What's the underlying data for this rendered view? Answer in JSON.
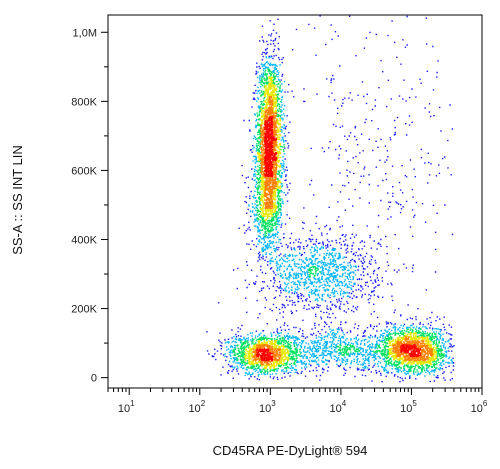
{
  "chart_data": {
    "type": "scatter",
    "subtype": "flow-cytometry-density-dot-plot",
    "title": "",
    "xlabel": "CD45RA PE-DyLight® 594",
    "ylabel": "SS-A :: SS INT LIN",
    "x_scale": "log",
    "xlim": [
      5,
      1000000
    ],
    "ylim": [
      -30000,
      1050000
    ],
    "x_ticks": [
      {
        "value": 10,
        "base": "10",
        "exp": "1"
      },
      {
        "value": 100,
        "base": "10",
        "exp": "2"
      },
      {
        "value": 1000,
        "base": "10",
        "exp": "3"
      },
      {
        "value": 10000,
        "base": "10",
        "exp": "4"
      },
      {
        "value": 100000,
        "base": "10",
        "exp": "5"
      },
      {
        "value": 1000000,
        "base": "10",
        "exp": "6"
      }
    ],
    "y_ticks": [
      {
        "value": 0,
        "label": "0"
      },
      {
        "value": 200000,
        "label": "200K"
      },
      {
        "value": 400000,
        "label": "400K"
      },
      {
        "value": 600000,
        "label": "600K"
      },
      {
        "value": 800000,
        "label": "800K"
      },
      {
        "value": 1000000,
        "label": "1,0M"
      }
    ],
    "grid": false,
    "legend": "none",
    "density_colors": [
      "#1a1aff",
      "#00b4ff",
      "#00e060",
      "#e8e800",
      "#ff8000",
      "#ff0000"
    ],
    "populations": [
      {
        "x_log10_center": 2.98,
        "x_log10_sd": 0.09,
        "y_center": 690000,
        "y_sd": 120000,
        "weight": 0.3
      },
      {
        "x_log10_center": 2.95,
        "x_log10_sd": 0.12,
        "y_center": 500000,
        "y_sd": 70000,
        "weight": 0.08
      },
      {
        "x_log10_center": 3.7,
        "x_log10_sd": 0.4,
        "y_center": 300000,
        "y_sd": 55000,
        "weight": 0.12
      },
      {
        "x_log10_center": 2.9,
        "x_log10_sd": 0.25,
        "y_center": 70000,
        "y_sd": 30000,
        "weight": 0.16
      },
      {
        "x_log10_center": 5.05,
        "x_log10_sd": 0.25,
        "y_center": 80000,
        "y_sd": 35000,
        "weight": 0.2
      },
      {
        "x_log10_center": 4.0,
        "x_log10_sd": 0.55,
        "y_center": 80000,
        "y_sd": 30000,
        "weight": 0.1
      },
      {
        "x_log10_center": 4.5,
        "x_log10_sd": 0.6,
        "y_center": 650000,
        "y_sd": 250000,
        "weight": 0.04
      }
    ]
  }
}
